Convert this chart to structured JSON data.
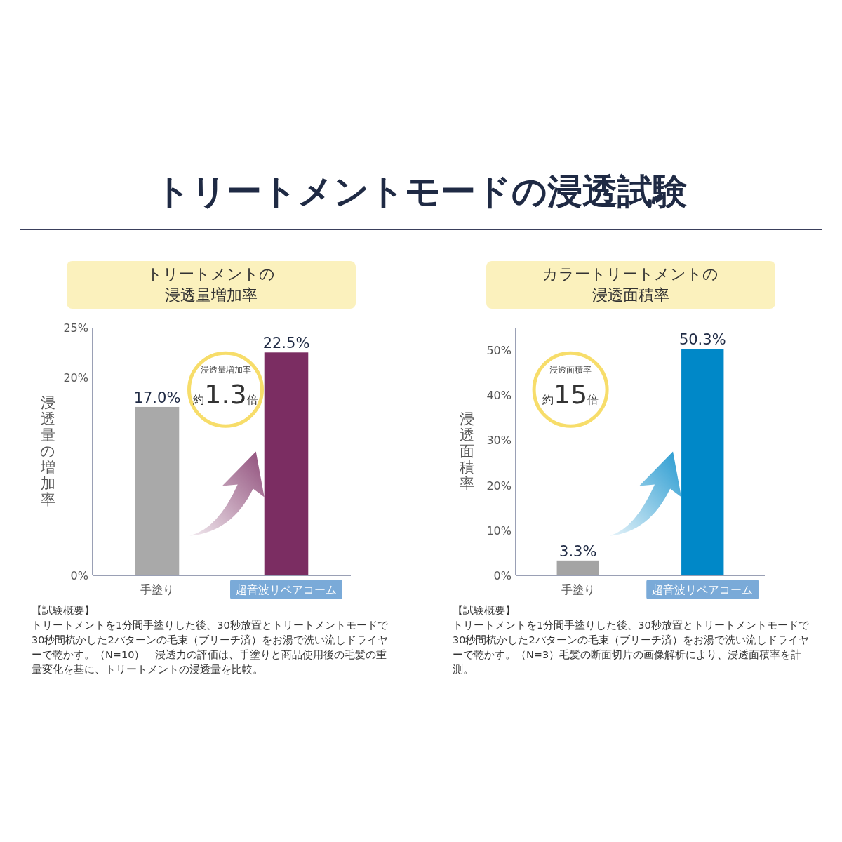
{
  "chart_data": [
    {
      "type": "bar",
      "title": "トリートメントモードの浸透試験",
      "subtitle": "トリートメントの浸透量増加率",
      "ylabel": "浸透量の増加率",
      "categories": [
        "手塗り",
        "超音波リペアコーム"
      ],
      "values": [
        17.0,
        22.5
      ],
      "colors": [
        "#a9a9a9",
        "#7b2d62"
      ],
      "ylim": [
        0,
        25
      ],
      "yticks": [
        {
          "value": 0,
          "label": "0%"
        },
        {
          "value": 20,
          "label": "20%"
        },
        {
          "value": 25,
          "label": "25%"
        }
      ],
      "value_labels": [
        "17.0%",
        "22.5%"
      ],
      "annotations": [
        "浸透量増加率",
        "約1.3倍",
        "【試験概要】",
        "トリートメントを1分間手塗りした後、30秒放置とトリートメントモードで30秒間梳かした2パターンの毛束（ブリーチ済）をお湯で洗い流しドライヤーで乾かす。（N=10）　浸透力の評価は、手塗りと商品使用後の毛髪の重量変化を基に、トリートメントの浸透量を比較。"
      ]
    },
    {
      "type": "bar",
      "subtitle": "カラートリートメントの浸透面積率",
      "ylabel": "浸透面積率",
      "categories": [
        "手塗り",
        "超音波リペアコーム"
      ],
      "values": [
        3.3,
        50.3
      ],
      "colors": [
        "#a4a4a4",
        "#0088c8"
      ],
      "ylim": [
        0,
        55
      ],
      "yticks": [
        {
          "value": 0,
          "label": "0%"
        },
        {
          "value": 10,
          "label": "10%"
        },
        {
          "value": 20,
          "label": "20%"
        },
        {
          "value": 30,
          "label": "30%"
        },
        {
          "value": 40,
          "label": "40%"
        },
        {
          "value": 50,
          "label": "50%"
        }
      ],
      "value_labels": [
        "3.3%",
        "50.3%"
      ],
      "annotations": [
        "浸透面積率",
        "約15倍",
        "【試験概要】",
        "トリートメントを1分間手塗りした後、30秒放置とトリートメントモードで30秒間梳かした2パターンの毛束（ブリーチ済）をお湯で洗い流しドライヤーで乾かす。（N=3）毛髪の断面切片の画像解析により、浸透面積率を計測。"
      ]
    }
  ]
}
